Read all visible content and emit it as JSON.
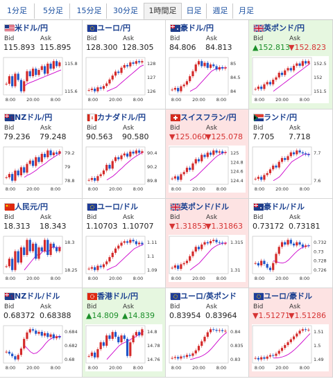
{
  "tabs": [
    "1分足",
    "5分足",
    "15分足",
    "30分足",
    "1時間足",
    "日足",
    "週足",
    "月足"
  ],
  "active_tab": "1時間足",
  "labels": {
    "bid": "Bid",
    "ask": "Ask"
  },
  "colors": {
    "up_bg": "#e6f7e0",
    "down_bg": "#fde3e3",
    "candle_up": "#d42a2a",
    "candle_down": "#1f56c9",
    "ma": "#cc00cc"
  },
  "rows": [
    [
      {
        "name": "米ドル/円",
        "flag": "flag-us-icon",
        "bid": "115.893",
        "ask": "115.895",
        "trend": "none",
        "chart_data": {
          "type": "candlestick",
          "y_ticks": [
            "115.8",
            "115.6"
          ],
          "x_ticks": [
            "8:00",
            "20:00",
            "8:00"
          ],
          "closes": [
            115.72,
            115.78,
            115.7,
            115.8,
            115.75,
            115.66,
            115.74,
            115.82,
            115.78,
            115.84,
            115.79,
            115.83,
            115.86,
            115.8,
            115.88,
            115.84,
            115.9,
            115.86,
            115.89
          ],
          "ma": [
            115.7,
            115.72,
            115.73,
            115.74,
            115.75,
            115.76,
            115.77,
            115.78,
            115.79,
            115.8,
            115.81,
            115.82,
            115.83
          ]
        }
      },
      {
        "name": "ユーロ/円",
        "flag": "flag-eu-icon",
        "bid": "128.300",
        "ask": "128.305",
        "trend": "none",
        "chart_data": {
          "type": "candlestick",
          "y_ticks": [
            "128",
            "127",
            "126"
          ],
          "x_ticks": [
            "8:00",
            "20:00",
            "8:00"
          ],
          "closes": [
            126.1,
            126.2,
            126.0,
            126.3,
            126.2,
            126.4,
            126.6,
            126.9,
            127.2,
            127.5,
            127.4,
            127.8,
            128.0,
            127.9,
            128.2,
            128.1,
            128.3,
            128.2,
            128.3
          ],
          "ma": [
            126.0,
            126.1,
            126.2,
            126.3,
            126.5,
            126.7,
            126.9,
            127.1,
            127.3,
            127.5,
            127.7,
            127.9,
            128.0
          ]
        }
      },
      {
        "name": "豪ドル/円",
        "flag": "flag-au-icon",
        "bid": "84.806",
        "ask": "84.813",
        "trend": "none",
        "chart_data": {
          "type": "candlestick",
          "y_ticks": [
            "85",
            "84.5",
            "84"
          ],
          "x_ticks": [
            "8:00",
            "20:00",
            "8:00"
          ],
          "closes": [
            84.15,
            84.2,
            84.1,
            84.25,
            84.3,
            84.4,
            84.55,
            84.7,
            84.9,
            85.0,
            84.85,
            84.95,
            84.8,
            84.9,
            84.85,
            84.75,
            84.82,
            84.78,
            84.81
          ],
          "ma": [
            84.1,
            84.15,
            84.2,
            84.3,
            84.4,
            84.5,
            84.6,
            84.7,
            84.75,
            84.78,
            84.8,
            84.8,
            84.81
          ]
        }
      },
      {
        "name": "英ポンド/円",
        "flag": "flag-gb-icon",
        "bid": "▲152.813",
        "ask": "▼152.823",
        "trend": "up",
        "chart_data": {
          "type": "candlestick",
          "y_ticks": [
            "152.5",
            "152",
            "151.5"
          ],
          "x_ticks": [
            "8:00",
            "20:00",
            "8:00"
          ],
          "closes": [
            151.6,
            151.7,
            151.6,
            151.8,
            151.9,
            151.8,
            152.0,
            152.1,
            152.3,
            152.2,
            152.4,
            152.5,
            152.4,
            152.6,
            152.7,
            152.6,
            152.8,
            152.7,
            152.8
          ],
          "ma": [
            151.5,
            151.6,
            151.7,
            151.8,
            151.9,
            152.0,
            152.1,
            152.2,
            152.3,
            152.4,
            152.5,
            152.6,
            152.7
          ]
        }
      }
    ],
    [
      {
        "name": "NZドル/円",
        "flag": "flag-nz-icon",
        "bid": "79.236",
        "ask": "79.248",
        "trend": "none",
        "chart_data": {
          "type": "candlestick",
          "y_ticks": [
            "79.2",
            "79",
            "78.8"
          ],
          "x_ticks": [
            "8:00",
            "20:00",
            "8:00"
          ],
          "closes": [
            78.85,
            78.9,
            78.8,
            78.95,
            78.88,
            79.0,
            78.92,
            79.05,
            79.1,
            79.02,
            79.15,
            79.08,
            79.2,
            79.15,
            79.25,
            79.18,
            79.22,
            79.2,
            79.24
          ],
          "ma": [
            78.85,
            78.88,
            78.9,
            78.93,
            78.96,
            79.0,
            79.03,
            79.06,
            79.1,
            79.13,
            79.16,
            79.19,
            79.22
          ]
        }
      },
      {
        "name": "カナダドル/円",
        "flag": "flag-ca-icon",
        "bid": "90.563",
        "ask": "90.580",
        "trend": "none",
        "chart_data": {
          "type": "candlestick",
          "y_ticks": [
            "90.4",
            "90.2",
            "89.8"
          ],
          "x_ticks": [
            "8:00",
            "20:00",
            "8:00"
          ],
          "closes": [
            89.8,
            89.85,
            89.78,
            89.9,
            89.95,
            90.05,
            90.2,
            90.1,
            90.3,
            90.4,
            90.35,
            90.45,
            90.5,
            90.42,
            90.55,
            90.5,
            90.58,
            90.52,
            90.56
          ],
          "ma": [
            89.8,
            89.85,
            89.9,
            89.97,
            90.05,
            90.12,
            90.2,
            90.27,
            90.34,
            90.4,
            90.45,
            90.5,
            90.54
          ]
        }
      },
      {
        "name": "スイスフラン/円",
        "flag": "flag-ch-icon",
        "bid": "▼125.060",
        "ask": "▼125.078",
        "trend": "down",
        "chart_data": {
          "type": "candlestick",
          "y_ticks": [
            "125",
            "124.8",
            "124.6",
            "124.4"
          ],
          "x_ticks": [
            "8:00",
            "20:00",
            "8:00"
          ],
          "closes": [
            124.45,
            124.5,
            124.42,
            124.55,
            124.6,
            124.7,
            124.65,
            124.8,
            124.9,
            124.85,
            125.0,
            124.95,
            125.05,
            125.0,
            125.1,
            125.05,
            125.08,
            125.04,
            125.06
          ],
          "ma": [
            124.4,
            124.45,
            124.5,
            124.57,
            124.64,
            124.71,
            124.78,
            124.85,
            124.92,
            124.98,
            125.02,
            125.05,
            125.06
          ]
        }
      },
      {
        "name": "ランド/円",
        "flag": "flag-za-icon",
        "bid": "7.705",
        "ask": "7.718",
        "trend": "none",
        "chart_data": {
          "type": "candlestick",
          "y_ticks": [
            "7.7",
            "7.6"
          ],
          "x_ticks": [
            "8:00",
            "20:00",
            "8:00"
          ],
          "closes": [
            7.58,
            7.59,
            7.575,
            7.6,
            7.61,
            7.63,
            7.65,
            7.64,
            7.67,
            7.69,
            7.68,
            7.7,
            7.72,
            7.71,
            7.73,
            7.72,
            7.715,
            7.71,
            7.705
          ],
          "ma": [
            7.57,
            7.58,
            7.59,
            7.61,
            7.63,
            7.65,
            7.67,
            7.68,
            7.69,
            7.7,
            7.71,
            7.71,
            7.71
          ]
        }
      }
    ],
    [
      {
        "name": "人民元/円",
        "flag": "flag-cn-icon",
        "bid": "18.313",
        "ask": "18.343",
        "trend": "none",
        "chart_data": {
          "type": "candlestick",
          "y_ticks": [
            "18.3",
            "18.25"
          ],
          "x_ticks": [
            "8:00",
            "20:00",
            "8:00"
          ],
          "closes": [
            18.26,
            18.28,
            18.25,
            18.3,
            18.27,
            18.31,
            18.29,
            18.33,
            18.3,
            18.32,
            18.28,
            18.31,
            18.3,
            18.33,
            18.29,
            18.32,
            18.31,
            18.3,
            18.31
          ],
          "ma": [
            18.25,
            18.26,
            18.27,
            18.28,
            18.29,
            18.29,
            18.3,
            18.3,
            18.3,
            18.31,
            18.31,
            18.31,
            18.31
          ]
        }
      },
      {
        "name": "ユーロ/ドル",
        "flag": "flag-eu-icon",
        "bid": "1.10703",
        "ask": "1.10707",
        "trend": "none",
        "chart_data": {
          "type": "candlestick",
          "y_ticks": [
            "1.11",
            "1.1",
            "1.09"
          ],
          "x_ticks": [
            "8:00",
            "20:00",
            "8:00"
          ],
          "closes": [
            1.09,
            1.091,
            1.089,
            1.092,
            1.091,
            1.093,
            1.095,
            1.098,
            1.101,
            1.104,
            1.106,
            1.108,
            1.109,
            1.108,
            1.11,
            1.109,
            1.107,
            1.108,
            1.107
          ],
          "ma": [
            1.089,
            1.09,
            1.091,
            1.092,
            1.094,
            1.096,
            1.098,
            1.1,
            1.102,
            1.104,
            1.105,
            1.106,
            1.107
          ]
        }
      },
      {
        "name": "英ポンド/ドル",
        "flag": "flag-gb-icon",
        "bid": "▼1.31853",
        "ask": "▼1.31863",
        "trend": "down",
        "chart_data": {
          "type": "candlestick",
          "y_ticks": [
            "1.315",
            "1.31"
          ],
          "x_ticks": [
            "8:00",
            "20:00",
            "8:00"
          ],
          "closes": [
            1.308,
            1.309,
            1.3075,
            1.3095,
            1.31,
            1.311,
            1.313,
            1.315,
            1.317,
            1.316,
            1.318,
            1.319,
            1.3185,
            1.3195,
            1.32,
            1.319,
            1.3188,
            1.3185,
            1.3185
          ],
          "ma": [
            1.307,
            1.308,
            1.309,
            1.31,
            1.3115,
            1.313,
            1.3145,
            1.316,
            1.317,
            1.3178,
            1.3183,
            1.3186,
            1.3187
          ]
        }
      },
      {
        "name": "豪ドル/ドル",
        "flag": "flag-au-icon",
        "bid": "0.73172",
        "ask": "0.73181",
        "trend": "none",
        "chart_data": {
          "type": "candlestick",
          "y_ticks": [
            "0.732",
            "0.73",
            "0.728",
            "0.726"
          ],
          "x_ticks": [
            "8:00",
            "20:00",
            "8:00"
          ],
          "closes": [
            0.728,
            0.7275,
            0.7285,
            0.7278,
            0.727,
            0.7265,
            0.728,
            0.73,
            0.7315,
            0.7325,
            0.732,
            0.733,
            0.7322,
            0.7318,
            0.7325,
            0.732,
            0.7315,
            0.7318,
            0.7317
          ],
          "ma": [
            0.7285,
            0.7283,
            0.7281,
            0.728,
            0.7282,
            0.7287,
            0.7294,
            0.7301,
            0.7307,
            0.7312,
            0.7315,
            0.7317,
            0.7318
          ]
        }
      }
    ],
    [
      {
        "name": "NZドル/ドル",
        "flag": "flag-nz-icon",
        "bid": "0.68372",
        "ask": "0.68388",
        "trend": "none",
        "chart_data": {
          "type": "candlestick",
          "y_ticks": [
            "0.684",
            "0.682",
            "0.68"
          ],
          "x_ticks": [
            "8:00",
            "20:00",
            "8:00"
          ],
          "closes": [
            0.6815,
            0.6812,
            0.6808,
            0.6803,
            0.681,
            0.682,
            0.6835,
            0.6845,
            0.685,
            0.6848,
            0.6843,
            0.6846,
            0.684,
            0.6844,
            0.6838,
            0.6842,
            0.6836,
            0.6839,
            0.6837
          ],
          "ma": [
            0.6825,
            0.682,
            0.6815,
            0.6812,
            0.6813,
            0.6817,
            0.6822,
            0.6828,
            0.6833,
            0.6836,
            0.6838,
            0.6839,
            0.6839
          ]
        }
      },
      {
        "name": "香港ドル/円",
        "flag": "flag-hk-icon",
        "bid": "▲14.809",
        "ask": "▲14.839",
        "trend": "up",
        "chart_data": {
          "type": "candlestick",
          "y_ticks": [
            "14.8",
            "14.78",
            "14.76"
          ],
          "x_ticks": [
            "8:00",
            "20:00",
            "8:00"
          ],
          "closes": [
            14.77,
            14.775,
            14.768,
            14.78,
            14.79,
            14.785,
            14.8,
            14.795,
            14.805,
            14.798,
            14.79,
            14.8,
            14.795,
            14.77,
            14.79,
            14.8,
            14.805,
            14.8,
            14.809
          ],
          "ma": [
            14.765,
            14.77,
            14.775,
            14.78,
            14.785,
            14.788,
            14.79,
            14.792,
            14.795,
            14.797,
            14.8,
            14.803,
            14.806
          ]
        }
      },
      {
        "name": "ユーロ/英ポンド",
        "flag": "flag-eu-icon",
        "bid": "0.83954",
        "ask": "0.83964",
        "trend": "none",
        "chart_data": {
          "type": "candlestick",
          "y_ticks": [
            "0.84",
            "0.835",
            "0.83"
          ],
          "x_ticks": [
            "8:00",
            "20:00",
            "8:00"
          ],
          "closes": [
            0.8305,
            0.8308,
            0.8303,
            0.831,
            0.8308,
            0.8315,
            0.8312,
            0.832,
            0.833,
            0.8345,
            0.836,
            0.8375,
            0.839,
            0.84,
            0.8398,
            0.8395,
            0.8397,
            0.8394,
            0.8395
          ],
          "ma": [
            0.83,
            0.8302,
            0.8305,
            0.8308,
            0.8312,
            0.8318,
            0.8326,
            0.8336,
            0.8348,
            0.836,
            0.8372,
            0.8382,
            0.839
          ]
        }
      },
      {
        "name": "ユーロ/豪ドル",
        "flag": "flag-eu-icon",
        "bid": "▼1.51271",
        "ask": "▼1.51286",
        "trend": "down",
        "chart_data": {
          "type": "candlestick",
          "y_ticks": [
            "1.51",
            "1.5",
            "1.49"
          ],
          "x_ticks": [
            "8:00",
            "20:00",
            "8:00"
          ],
          "closes": [
            1.493,
            1.492,
            1.4935,
            1.4925,
            1.494,
            1.495,
            1.4945,
            1.496,
            1.498,
            1.5,
            1.502,
            1.504,
            1.506,
            1.508,
            1.51,
            1.512,
            1.513,
            1.5125,
            1.5127
          ],
          "ma": [
            1.493,
            1.493,
            1.4933,
            1.4938,
            1.4946,
            1.4957,
            1.4972,
            1.499,
            1.501,
            1.5032,
            1.5055,
            1.5078,
            1.51
          ]
        }
      }
    ]
  ]
}
